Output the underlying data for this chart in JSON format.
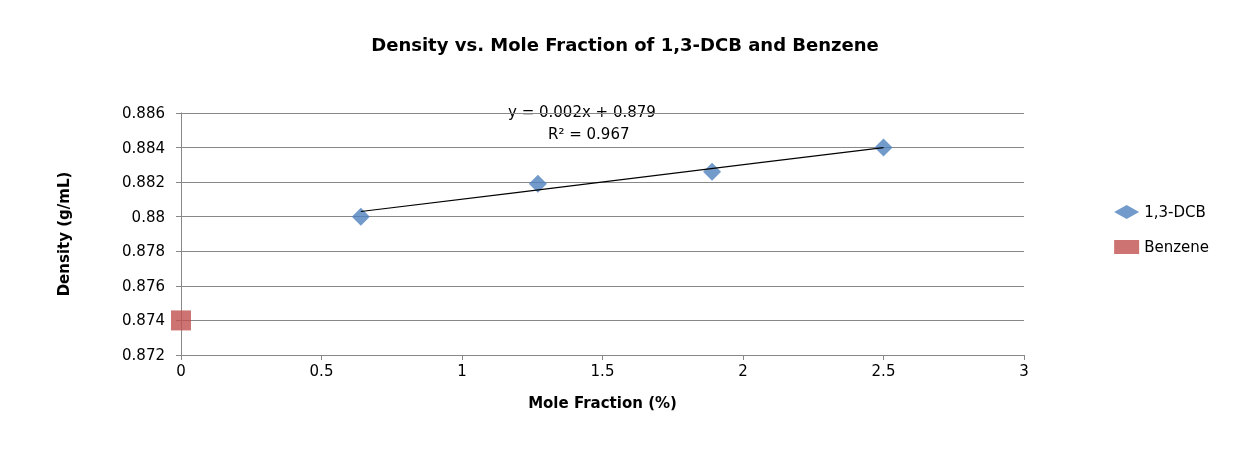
{
  "chart_data": {
    "type": "scatter",
    "title": "Density vs. Mole Fraction of 1,3-DCB and Benzene",
    "xlabel": "Mole Fraction (%)",
    "ylabel": "Density (g/mL)",
    "series": [
      {
        "name": "1,3-DCB",
        "color": "#4f81bd",
        "marker": "diamond",
        "x": [
          0.64,
          1.27,
          1.89,
          2.5
        ],
        "values": [
          0.88,
          0.8819,
          0.8826,
          0.884
        ]
      },
      {
        "name": "Benzene",
        "color": "#c0504d",
        "marker": "square",
        "x": [
          0
        ],
        "values": [
          0.874
        ]
      },
      {
        "type": "line",
        "color": "#000000",
        "marker": "none",
        "line_style": "solid",
        "x": [
          0.64,
          2.5
        ],
        "values": [
          0.8803,
          0.884
        ]
      }
    ],
    "annotations": [
      "y = 0.002x + 0.879",
      "R² = 0.967"
    ],
    "xlim": [
      0,
      3
    ],
    "xticks": [
      0,
      0.5,
      1,
      1.5,
      2,
      2.5,
      3
    ],
    "ylim": [
      0.872,
      0.886
    ],
    "yticks": [
      0.872,
      0.874,
      0.876,
      0.878,
      0.88,
      0.882,
      0.884,
      0.886
    ],
    "grid": "y",
    "legend": "right"
  }
}
